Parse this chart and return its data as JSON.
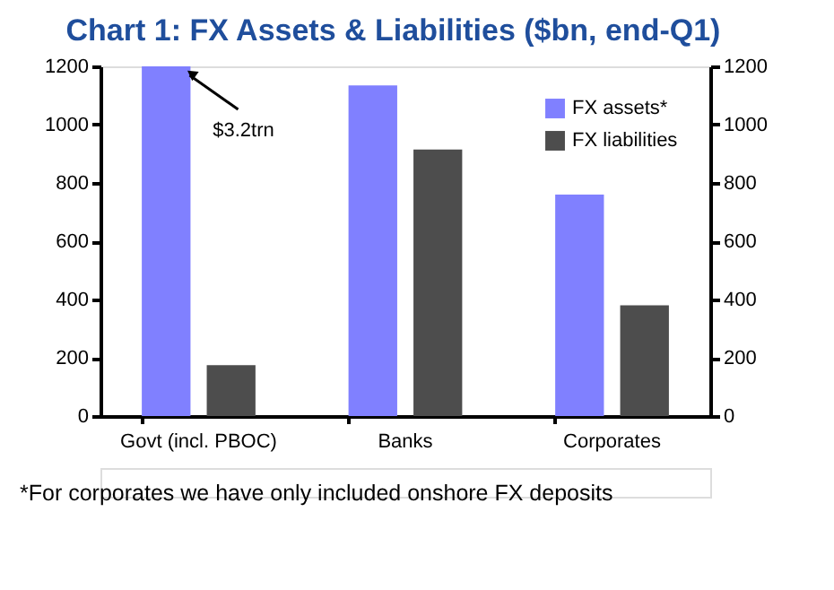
{
  "chart_data": {
    "type": "bar",
    "title": "Chart 1: FX Assets & Liabilities ($bn, end-Q1)",
    "categories": [
      "Govt (incl. PBOC)",
      "Banks",
      "Corporates"
    ],
    "series": [
      {
        "name": "FX assets*",
        "color": "#8080ff",
        "values": [
          1200,
          1135,
          760
        ]
      },
      {
        "name": "FX liabilities",
        "color": "#4d4d4d",
        "values": [
          175,
          915,
          380
        ]
      }
    ],
    "ylim": [
      0,
      1200
    ],
    "yticks": [
      0,
      200,
      400,
      600,
      800,
      1000,
      1200
    ],
    "y2lim": [
      0,
      1200
    ],
    "y2ticks": [
      0,
      200,
      400,
      600,
      800,
      1000,
      1200
    ],
    "grid": false,
    "legend": "top right",
    "annotations": [
      {
        "text": "$3.2trn",
        "x": "Govt (incl. PBOC)",
        "y": 1200
      },
      "*For corporates we have only included onshore FX deposits"
    ]
  }
}
